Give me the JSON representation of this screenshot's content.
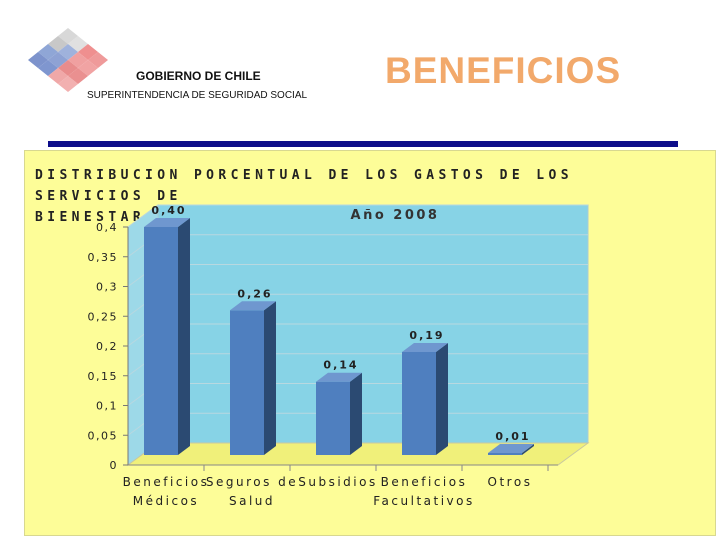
{
  "header": {
    "org_name": "GOBIERNO DE CHILE",
    "org_sub": "SUPERINTENDENCIA DE SEGURIDAD SOCIAL",
    "slide_title": "BENEFICIOS"
  },
  "colors": {
    "title": "#f2a96b",
    "divider": "#0d0d8a",
    "panel": "#fdfd98",
    "plot_bg": "#87d3e6",
    "floor": "#f0f07a",
    "bar_front": "#4f7fbf",
    "bar_side": "#2b4a72",
    "bar_top": "#6f97cf"
  },
  "chart_data": {
    "type": "bar",
    "title_line1": "DISTRIBUCION PORCENTUAL DE LOS GASTOS DE LOS SERVICIOS DE",
    "title_line2": "BIENESTAR, POR TIPO DE BENEFICIO",
    "subtitle": "Año 2008",
    "categories": [
      [
        "Beneficios",
        "Médicos"
      ],
      [
        "Seguros de",
        "Salud"
      ],
      [
        "Subsidios"
      ],
      [
        "Beneficios",
        "Facultativos"
      ],
      [
        "Otros"
      ]
    ],
    "values": [
      0.4,
      0.26,
      0.14,
      0.19,
      0.01
    ],
    "value_labels": [
      "0,40",
      "0,26",
      "0,14",
      "0,19",
      "0,01"
    ],
    "ylim": [
      0,
      0.4
    ],
    "yticks": [
      "0",
      "0,05",
      "0,1",
      "0,15",
      "0,2",
      "0,25",
      "0,3",
      "0,35",
      "0,4"
    ],
    "grid": true
  }
}
